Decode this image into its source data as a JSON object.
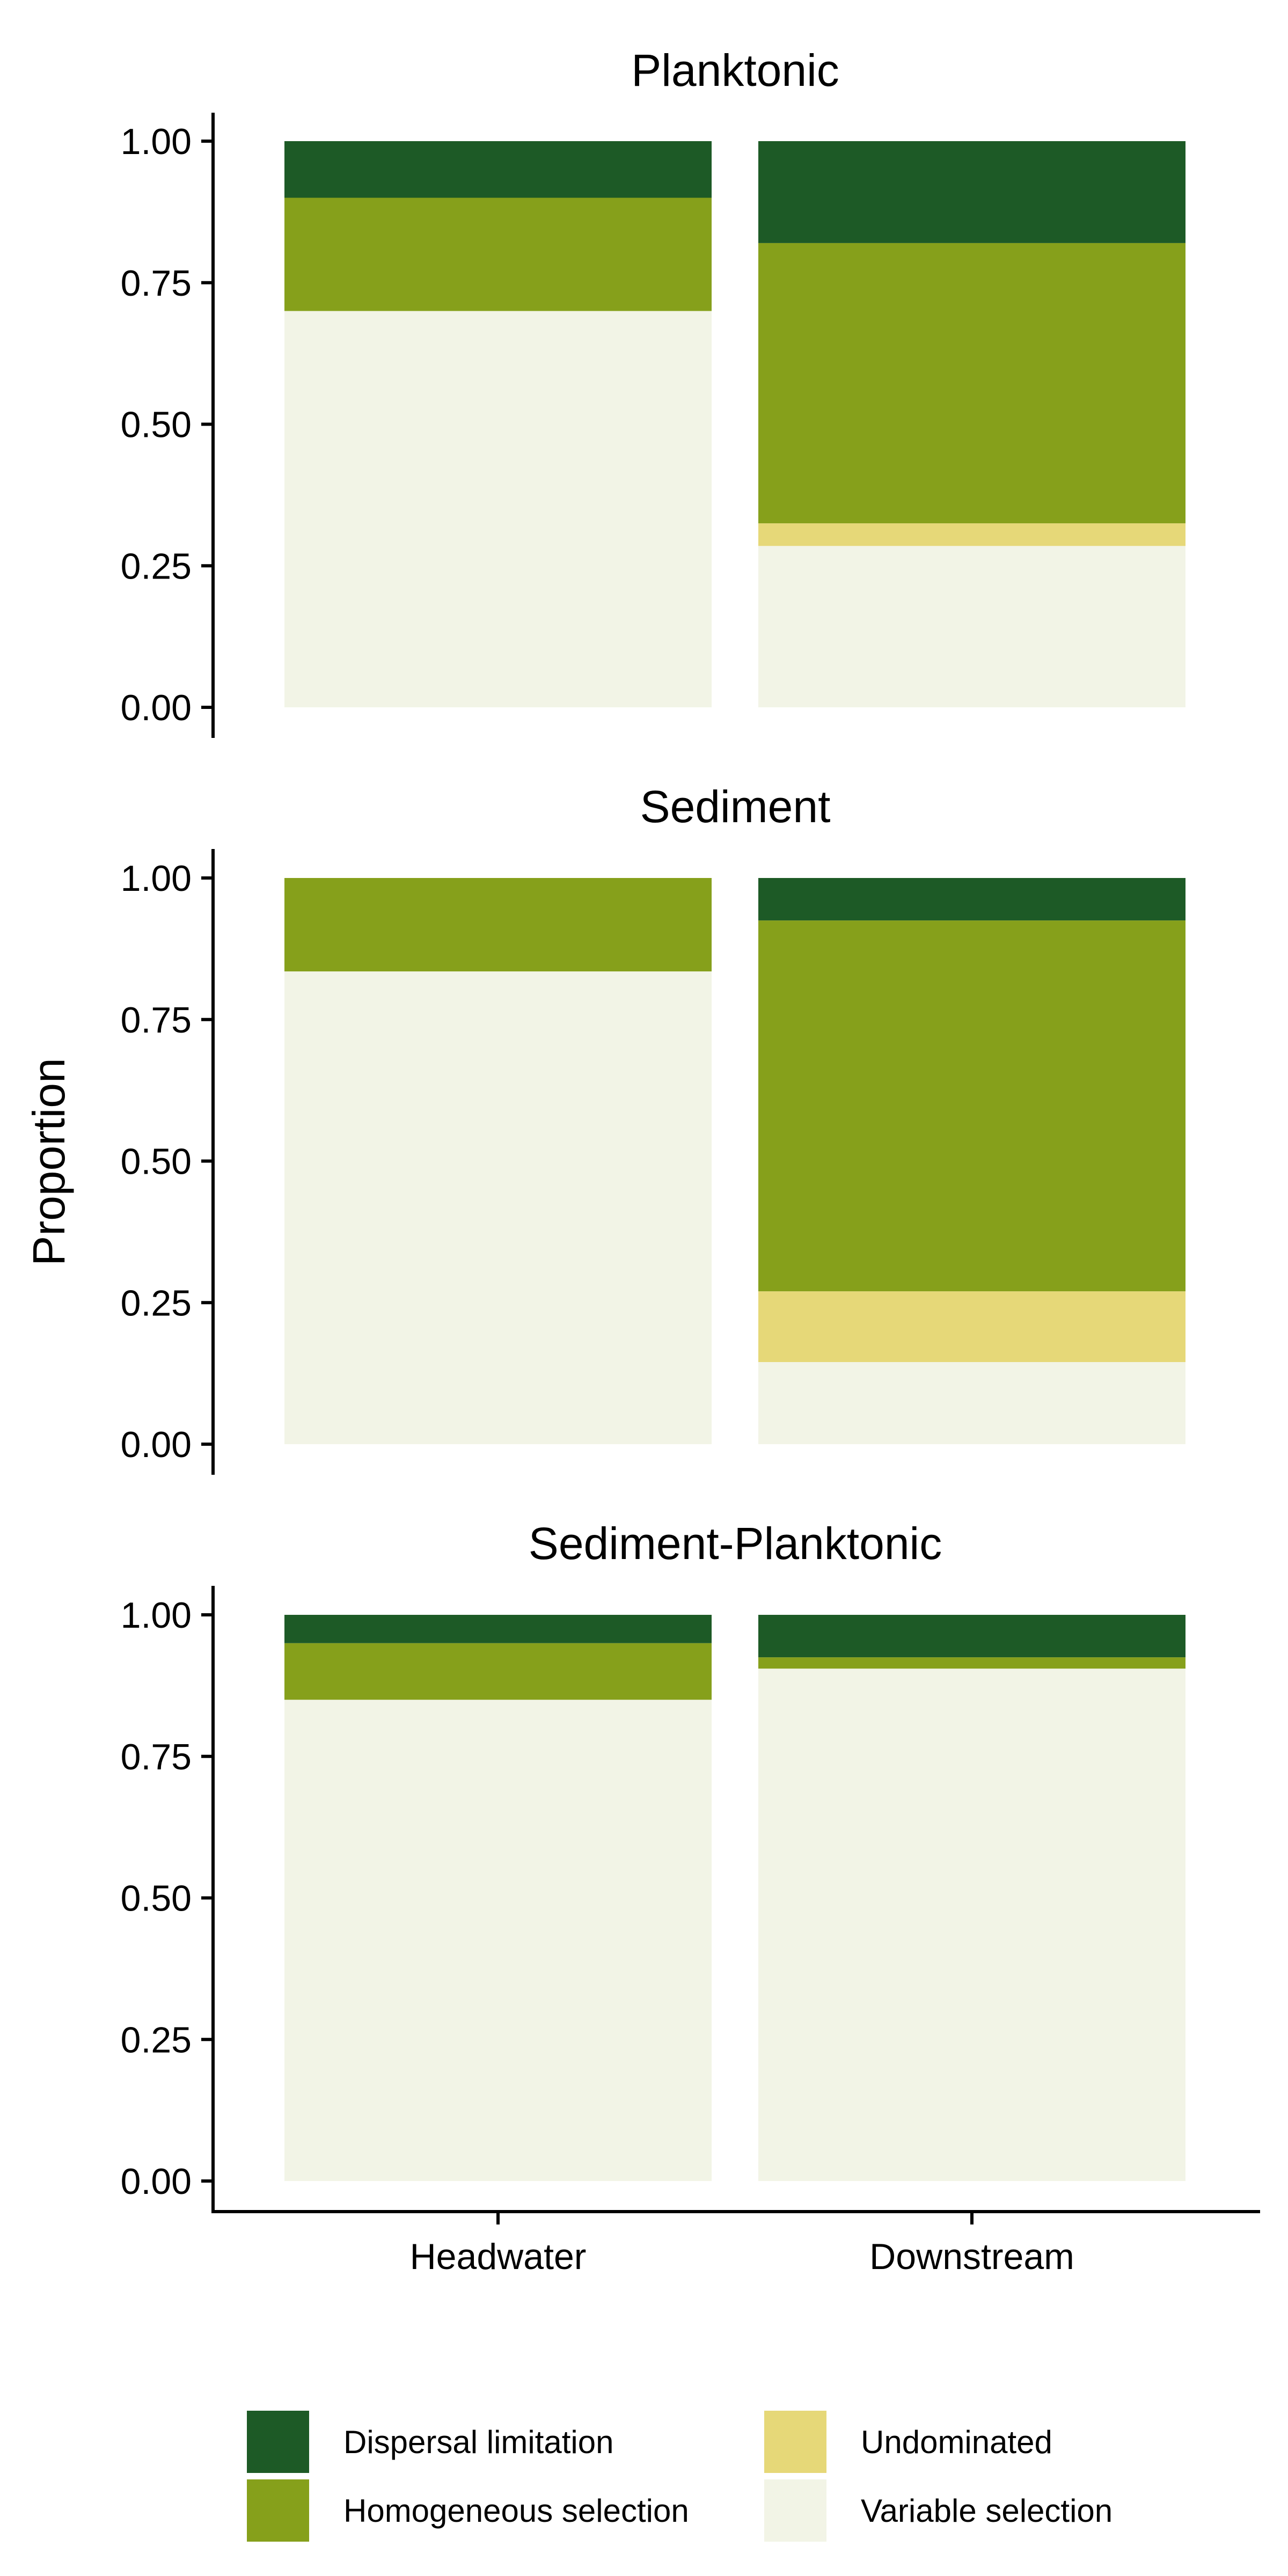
{
  "chart_data": {
    "type": "bar",
    "stacked": true,
    "ylabel": "Proportion",
    "xlabel": "",
    "categories": [
      "Headwater",
      "Downstream"
    ],
    "ylim": [
      0,
      1
    ],
    "yticks": [
      "0.00",
      "0.25",
      "0.50",
      "0.75",
      "1.00"
    ],
    "legend_position": "bottom",
    "stack_order": [
      "Variable selection",
      "Undominated",
      "Homogeneous selection",
      "Dispersal limitation"
    ],
    "legend": [
      {
        "name": "Dispersal limitation",
        "color": "#1d5a26"
      },
      {
        "name": "Undominated",
        "color": "#e6d878"
      },
      {
        "name": "Homogeneous selection",
        "color": "#86a01b"
      },
      {
        "name": "Variable selection",
        "color": "#f2f4e6"
      }
    ],
    "panels": [
      {
        "title": "Planktonic",
        "series": [
          {
            "name": "Variable selection",
            "values": [
              0.7,
              0.285
            ]
          },
          {
            "name": "Undominated",
            "values": [
              0.0,
              0.04
            ]
          },
          {
            "name": "Homogeneous selection",
            "values": [
              0.2,
              0.495
            ]
          },
          {
            "name": "Dispersal limitation",
            "values": [
              0.1,
              0.18
            ]
          }
        ]
      },
      {
        "title": "Sediment",
        "series": [
          {
            "name": "Variable selection",
            "values": [
              0.835,
              0.145
            ]
          },
          {
            "name": "Undominated",
            "values": [
              0.0,
              0.125
            ]
          },
          {
            "name": "Homogeneous selection",
            "values": [
              0.165,
              0.655
            ]
          },
          {
            "name": "Dispersal limitation",
            "values": [
              0.0,
              0.075
            ]
          }
        ]
      },
      {
        "title": "Sediment-Planktonic",
        "series": [
          {
            "name": "Variable selection",
            "values": [
              0.85,
              0.905
            ]
          },
          {
            "name": "Undominated",
            "values": [
              0.0,
              0.0
            ]
          },
          {
            "name": "Homogeneous selection",
            "values": [
              0.1,
              0.02
            ]
          },
          {
            "name": "Dispersal limitation",
            "values": [
              0.05,
              0.075
            ]
          }
        ]
      }
    ]
  }
}
